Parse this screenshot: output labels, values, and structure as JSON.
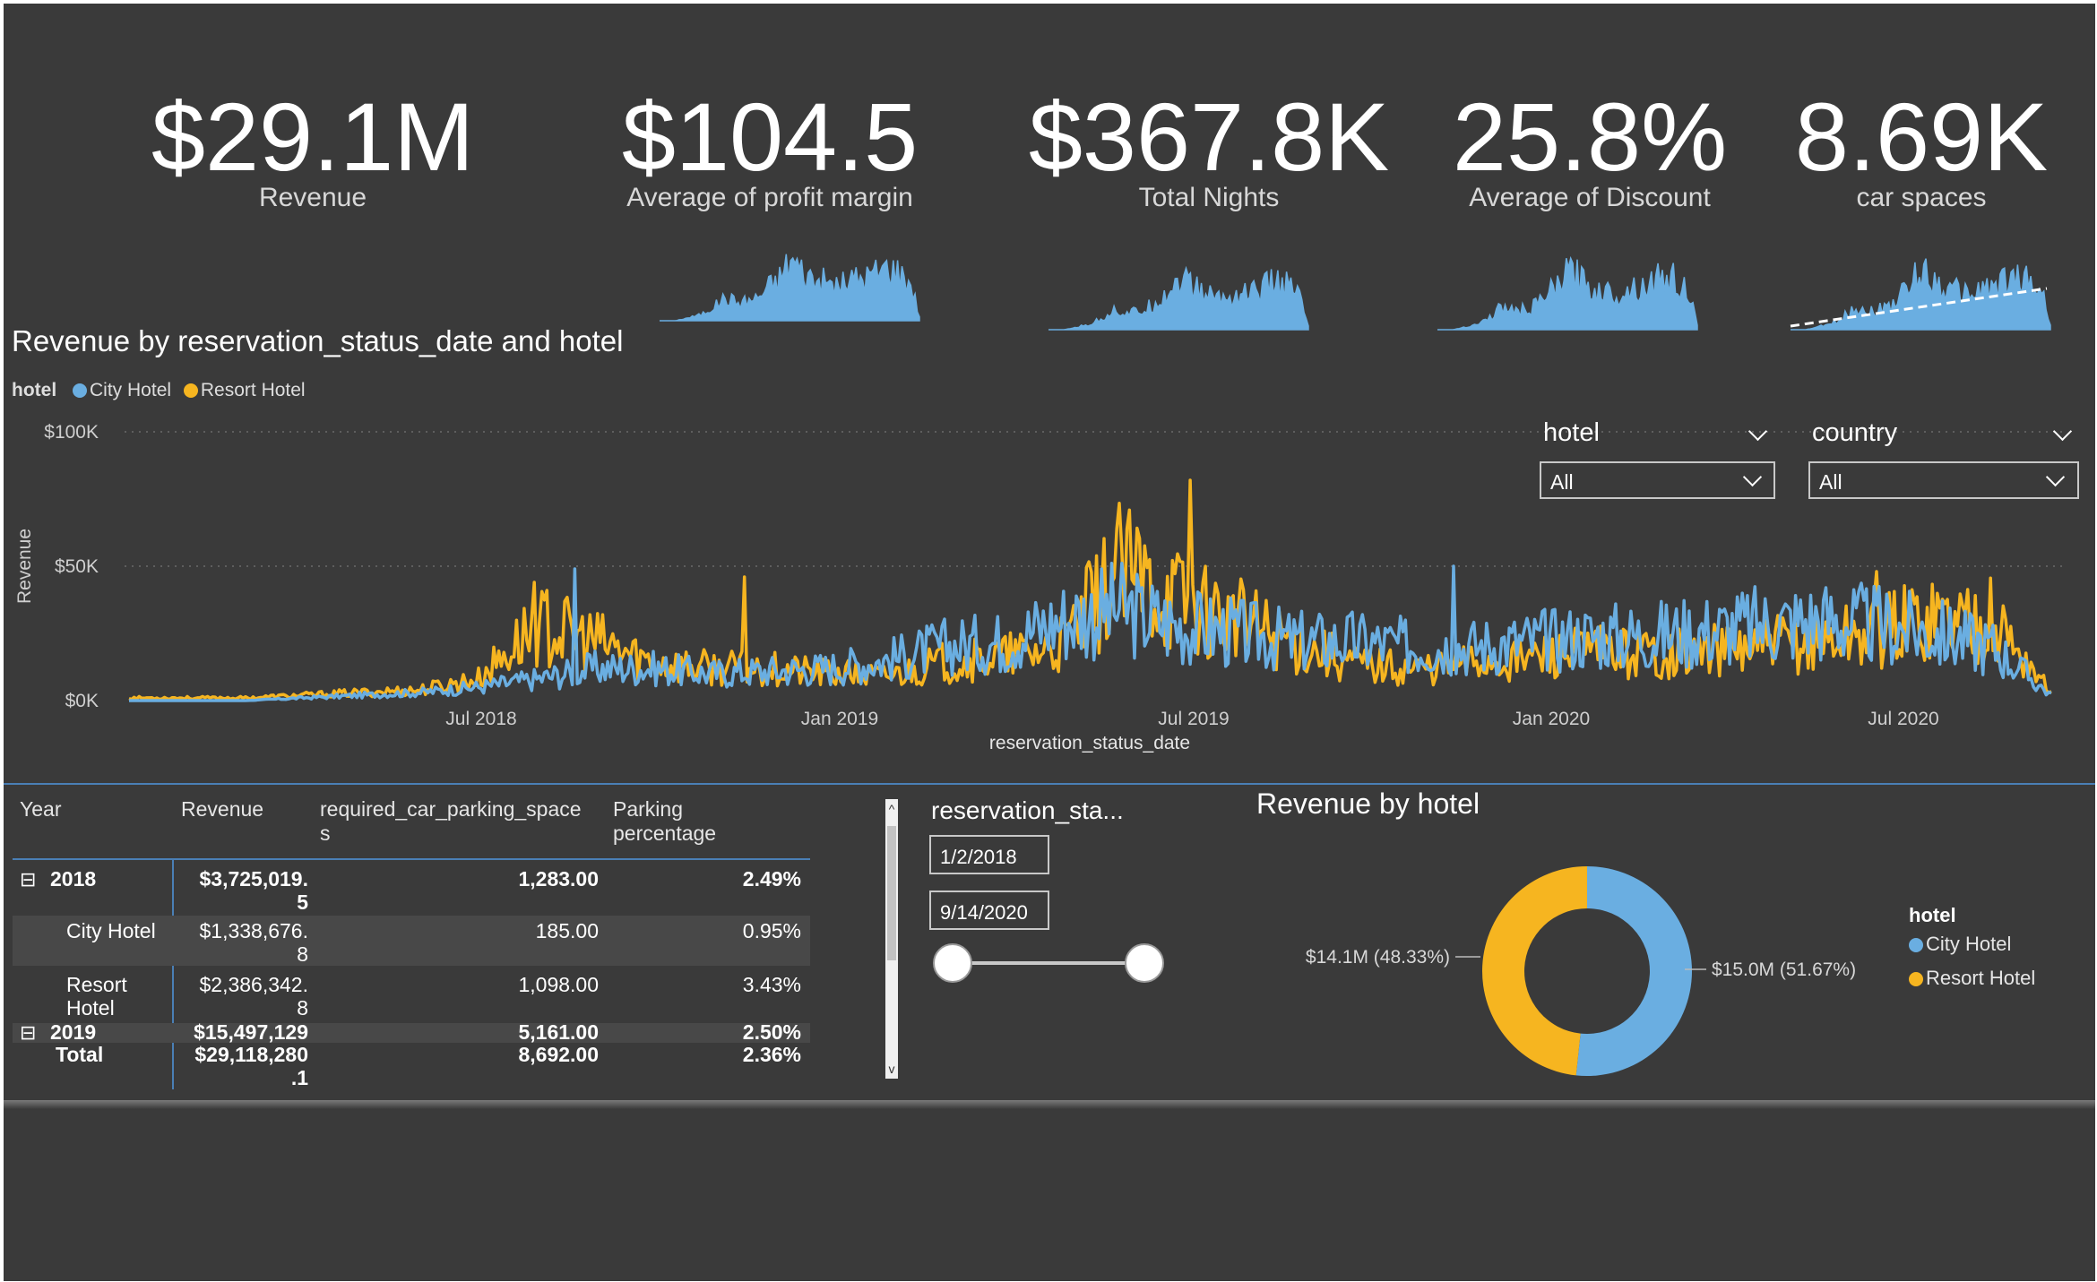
{
  "colors": {
    "city": "#6aaee1",
    "resort": "#f6b520",
    "background": "#3a3a3a",
    "divider": "#4a7fb5"
  },
  "kpis": [
    {
      "value": "$29.1M",
      "label": "Revenue"
    },
    {
      "value": "$104.5",
      "label": "Average of profit margin"
    },
    {
      "value": "$367.8K",
      "label": "Total Nights"
    },
    {
      "value": "25.8%",
      "label": "Average of Discount"
    },
    {
      "value": "8.69K",
      "label": "car spaces"
    }
  ],
  "line_chart": {
    "title": "Revenue by reservation_status_date and hotel",
    "legend_title": "hotel",
    "legend": [
      "City Hotel",
      "Resort Hotel"
    ],
    "y_axis_label": "Revenue",
    "x_axis_label": "reservation_status_date",
    "y_ticks": [
      "$100K",
      "$50K",
      "$0K"
    ],
    "x_ticks": [
      "Jul 2018",
      "Jan 2019",
      "Jul 2019",
      "Jan 2020",
      "Jul 2020"
    ]
  },
  "slicers": {
    "hotel": {
      "label": "hotel",
      "value": "All"
    },
    "country": {
      "label": "country",
      "value": "All"
    }
  },
  "table": {
    "headers": [
      "Year",
      "Revenue",
      "required_car_parking_space",
      "s",
      "Parking",
      "percentage"
    ],
    "rows": [
      {
        "toggle": "⊟",
        "name": "2018",
        "rev1": "$3,725,019.",
        "rev2": "5",
        "spaces": "1,283.00",
        "pct": "2.49%"
      },
      {
        "name": "City Hotel",
        "rev1": "$1,338,676.",
        "rev2": "8",
        "spaces": "185.00",
        "pct": "0.95%"
      },
      {
        "name1": "Resort",
        "name2": "Hotel",
        "rev1": "$2,386,342.",
        "rev2": "8",
        "spaces": "1,098.00",
        "pct": "3.43%"
      },
      {
        "toggle": "⊟",
        "name": "2019",
        "rev1": "$15,497,129",
        "spaces": "5,161.00",
        "pct": "2.50%"
      }
    ],
    "total": {
      "name": "Total",
      "rev1": "$29,118,280",
      "rev2": ".1",
      "spaces": "8,692.00",
      "pct": "2.36%"
    },
    "scroll_up": "^",
    "scroll_down": "v"
  },
  "date_slicer": {
    "title": "reservation_sta...",
    "start": "1/2/2018",
    "end": "9/14/2020"
  },
  "donut": {
    "title": "Revenue by hotel",
    "legend_title": "hotel",
    "slices": [
      {
        "name": "City Hotel",
        "value": 15.0,
        "label": "$15.0M (51.67%)",
        "percent": 51.67
      },
      {
        "name": "Resort Hotel",
        "value": 14.1,
        "label": "$14.1M (48.33%)",
        "percent": 48.33
      }
    ]
  },
  "chart_data": {
    "type": "line",
    "title": "Revenue by reservation_status_date and hotel",
    "xlabel": "reservation_status_date",
    "ylabel": "Revenue",
    "ylim": [
      0,
      100000
    ],
    "x_ticks": [
      "Jul 2018",
      "Jan 2019",
      "Jul 2019",
      "Jan 2020",
      "Jul 2020"
    ],
    "series": [
      {
        "name": "City Hotel",
        "approx_monthly_level_k": [
          0,
          0,
          0,
          1,
          2,
          3,
          5,
          8,
          12,
          12,
          10,
          11,
          12,
          15,
          20,
          22,
          30,
          34,
          28,
          25,
          22,
          22,
          20,
          20,
          22,
          24,
          24,
          26,
          28,
          30,
          28,
          25,
          20,
          2
        ]
      },
      {
        "name": "Resort Hotel",
        "approx_monthly_level_k": [
          1,
          1,
          1,
          2,
          3,
          4,
          8,
          28,
          22,
          14,
          12,
          12,
          10,
          9,
          14,
          16,
          20,
          48,
          38,
          30,
          22,
          14,
          12,
          14,
          16,
          18,
          18,
          18,
          20,
          22,
          26,
          32,
          30,
          3
        ]
      }
    ]
  }
}
